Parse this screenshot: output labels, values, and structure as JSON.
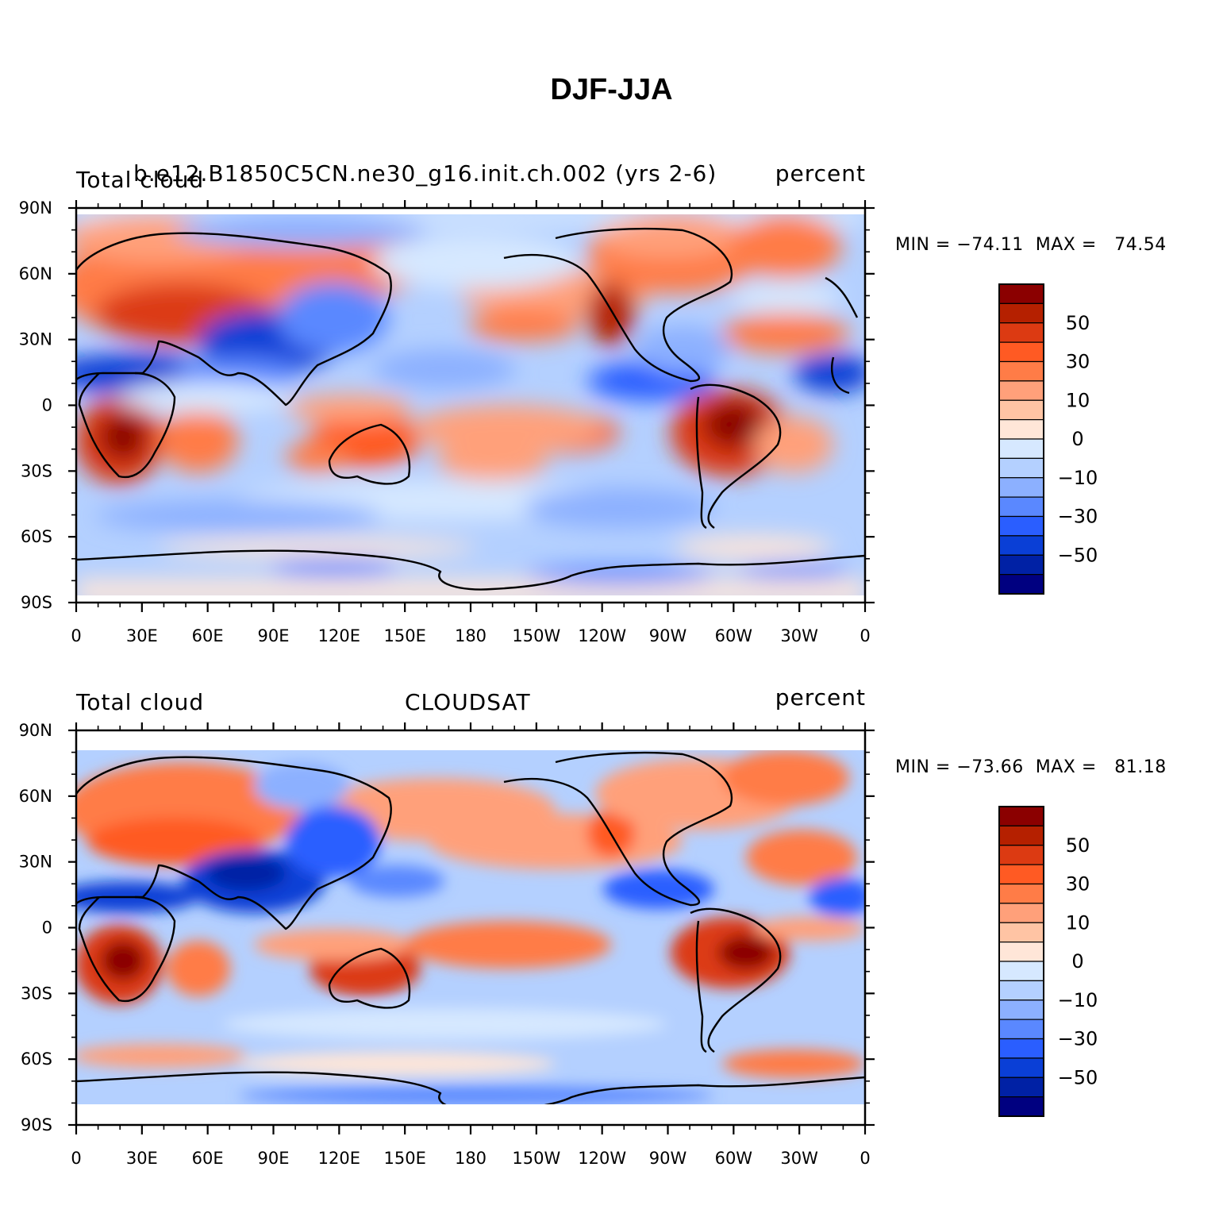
{
  "figure": {
    "title": "DJF-JJA"
  },
  "panels": [
    {
      "left_title": "Total cloud",
      "center_title": "b.e12.B1850C5CN.ne30_g16.init.ch.002 (yrs 2-6)",
      "right_title": "percent",
      "min_max": "MIN = −74.11  MAX =   74.54",
      "y_ticks": [
        "90N",
        "60N",
        "30N",
        "0",
        "30S",
        "60S",
        "90S"
      ],
      "x_ticks": [
        "0",
        "30E",
        "60E",
        "90E",
        "120E",
        "150E",
        "180",
        "150W",
        "120W",
        "90W",
        "60W",
        "30W",
        "0"
      ],
      "colorbar_labels": [
        "50",
        "30",
        "10",
        "0",
        "−10",
        "−30",
        "−50"
      ]
    },
    {
      "left_title": "Total cloud",
      "center_title": "CLOUDSAT",
      "right_title": "percent",
      "min_max": "MIN = −73.66  MAX =   81.18",
      "y_ticks": [
        "90N",
        "60N",
        "30N",
        "0",
        "30S",
        "60S",
        "90S"
      ],
      "x_ticks": [
        "0",
        "30E",
        "60E",
        "90E",
        "120E",
        "150E",
        "180",
        "150W",
        "120W",
        "90W",
        "60W",
        "30W",
        "0"
      ],
      "colorbar_labels": [
        "50",
        "30",
        "10",
        "0",
        "−10",
        "−30",
        "−50"
      ]
    }
  ],
  "colorbar_colors": [
    "#8b0000",
    "#b52000",
    "#dc3a12",
    "#ff5a23",
    "#ff7c47",
    "#ffa07a",
    "#ffc4a4",
    "#ffe6d8",
    "#d6e8ff",
    "#b4d0ff",
    "#8cb0ff",
    "#5a88ff",
    "#2a5eff",
    "#0a3fd6",
    "#0021a5",
    "#000080"
  ]
}
